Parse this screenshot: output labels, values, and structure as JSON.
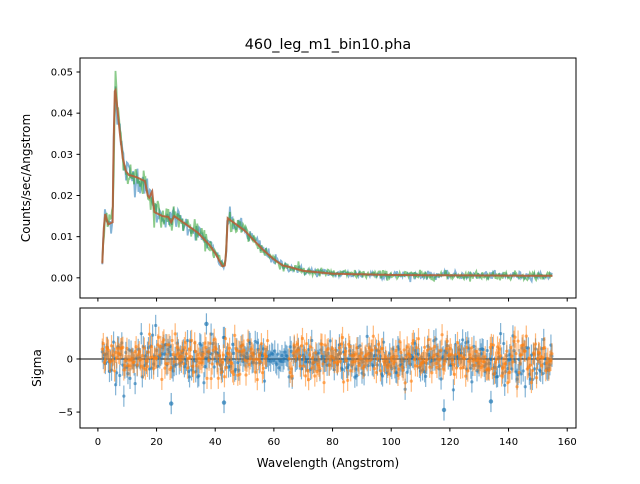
{
  "chart_data": [
    {
      "type": "line",
      "title": "460_leg_m1_bin10.pha",
      "xlabel": "",
      "ylabel": "Counts/sec/Angstrom",
      "xlim": [
        -6.1,
        163
      ],
      "ylim": [
        -0.0049,
        0.0534
      ],
      "xticks": [
        0,
        20,
        40,
        60,
        80,
        100,
        120,
        140,
        160
      ],
      "yticks": [
        0.0,
        0.01,
        0.02,
        0.03,
        0.04,
        0.05
      ],
      "ytick_labels": [
        "0.00",
        "0.01",
        "0.02",
        "0.03",
        "0.04",
        "0.05"
      ],
      "grid": false,
      "series_colors": {
        "data_1": "#1f77b4",
        "data_2": "#2ca02c",
        "model": "#b5603a"
      },
      "model": {
        "x": [
          1.5,
          2,
          2.5,
          3.5,
          5,
          5.3,
          5.8,
          6.5,
          7.5,
          8.5,
          9.5,
          10.5,
          13,
          16,
          17,
          17.5,
          18.5,
          19.2,
          22,
          24,
          25,
          26,
          30,
          34,
          38,
          40,
          41.5,
          42.5,
          43.3,
          43.8,
          44.2,
          50,
          56,
          60,
          63,
          65,
          70,
          80,
          100,
          120,
          155
        ],
        "y": [
          0.0035,
          0.012,
          0.0155,
          0.013,
          0.0135,
          0.03,
          0.047,
          0.042,
          0.035,
          0.029,
          0.026,
          0.025,
          0.0245,
          0.0235,
          0.02,
          0.0195,
          0.021,
          0.016,
          0.015,
          0.0148,
          0.0135,
          0.015,
          0.013,
          0.011,
          0.008,
          0.006,
          0.004,
          0.0028,
          0.003,
          0.007,
          0.0145,
          0.0115,
          0.007,
          0.0045,
          0.003,
          0.0027,
          0.0017,
          0.001,
          0.0007,
          0.0006,
          0.0005
        ]
      }
    },
    {
      "type": "scatter",
      "title": "",
      "xlabel": "Wavelength (Angstrom)",
      "ylabel": "Sigma",
      "xlim": [
        -6.1,
        163
      ],
      "ylim": [
        -6.5,
        4.8
      ],
      "xticks": [
        0,
        20,
        40,
        60,
        80,
        100,
        120,
        140,
        160
      ],
      "xtick_labels": [
        "0",
        "20",
        "40",
        "60",
        "80",
        "100",
        "120",
        "140",
        "160"
      ],
      "yticks": [
        -5,
        0
      ],
      "ytick_labels": [
        "−5",
        "0"
      ],
      "reference_line": 0,
      "series_colors": {
        "residuals_1": "#1f77b4",
        "residuals_2": "#ff7f0e"
      },
      "x_range": [
        1.5,
        155
      ],
      "outliers": [
        {
          "series": "residuals_1",
          "x": 25,
          "y": -4.2
        },
        {
          "series": "residuals_1",
          "x": 43,
          "y": -4.1
        },
        {
          "series": "residuals_1",
          "x": 118,
          "y": -4.8
        },
        {
          "series": "residuals_1",
          "x": 134,
          "y": -4.0
        },
        {
          "series": "residuals_1",
          "x": 37,
          "y": 3.3
        }
      ]
    }
  ]
}
